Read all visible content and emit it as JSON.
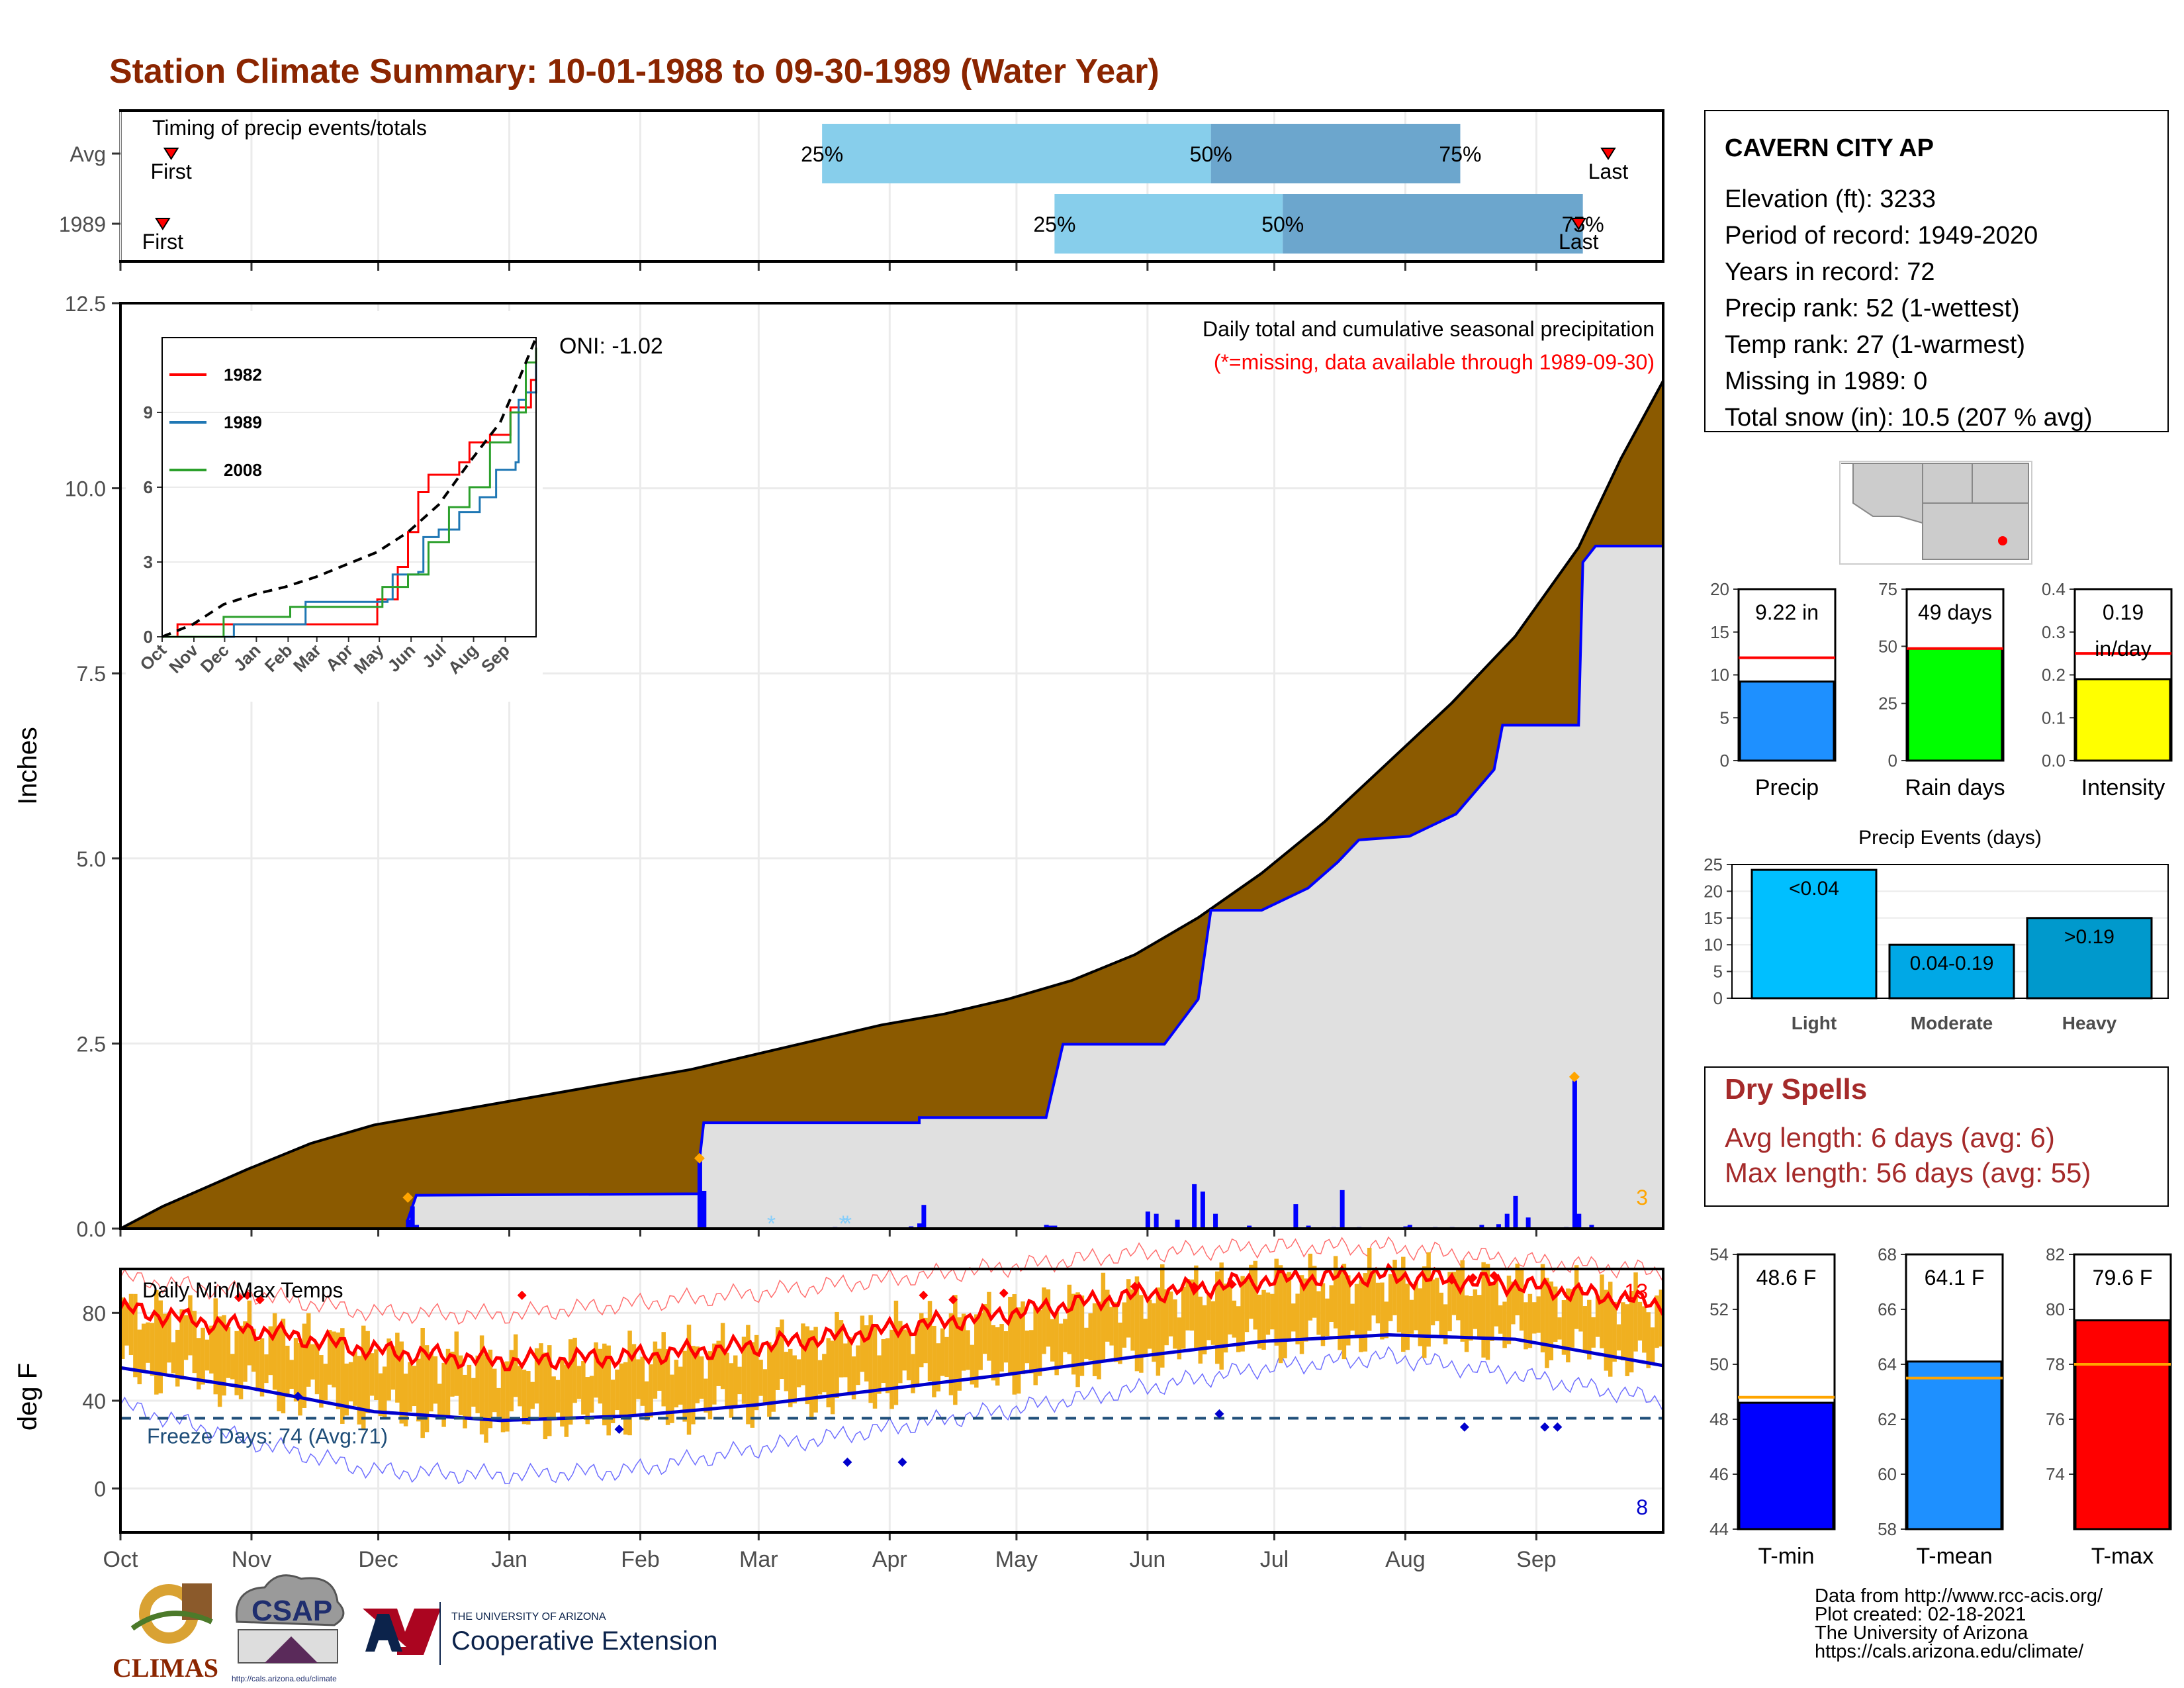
{
  "page": {
    "title": "Station Climate Summary: 10-01-1988 to 09-30-1989 (Water Year)",
    "footer_lines": [
      "Data from http://www.rcc-acis.org/",
      "Plot created: 02-18-2021",
      "The University of Arizona",
      "https://cals.arizona.edu/climate/"
    ],
    "logos": {
      "climas": "CLIMAS",
      "csap": "CSAP",
      "csap_url": "http://cals.arizona.edu/climate",
      "ua_small": "THE UNIVERSITY OF ARIZONA",
      "ua_big": "Cooperative Extension"
    }
  },
  "colors": {
    "title": "#8b2500",
    "cumulative_fill": "#8b5a00",
    "station_fill": "#e0e0e0",
    "precip_blue": "#0000ff",
    "temp_bar": "#f0b020",
    "tmax_line": "#ff0000",
    "tmin_line": "#0000cc",
    "quartile_light": "#87ceeb",
    "quartile_dark": "#6ca6cd",
    "dry_spells": "#a52a2a"
  },
  "info_box": {
    "station": "CAVERN CITY AP",
    "lines": [
      "Elevation (ft): 3233",
      "Period of record: 1949-2020",
      "Years in record: 72",
      "Precip rank: 52 (1-wettest)",
      "Temp rank: 27 (1-warmest)",
      "Missing in 1989: 0",
      "Total snow (in): 10.5 (207 % avg)"
    ]
  },
  "dry_spells": {
    "title": "Dry Spells",
    "avg": "Avg length: 6 days (avg: 6)",
    "max": "Max length: 56 days (avg: 55)"
  },
  "chart_data": [
    {
      "id": "timing",
      "type": "bar",
      "title": "Timing of precip events/totals",
      "rows": [
        {
          "label": "Avg",
          "first_day": 12,
          "q25_day": 166,
          "q50_day": 258,
          "q75_day": 317,
          "last_day": 352,
          "labels": {
            "first": "First",
            "last": "Last",
            "q25": "25%",
            "q50": "50%",
            "q75": "75%"
          }
        },
        {
          "label": "1989",
          "first_day": 10,
          "q25_day": 221,
          "q50_day": 275,
          "q75_day": 346,
          "last_day": 345,
          "labels": {
            "first": "First",
            "last": "Last",
            "q25": "25%",
            "q50": "50%",
            "q75": "75%"
          }
        }
      ]
    },
    {
      "id": "precip",
      "type": "area",
      "title": "Daily total and cumulative seasonal precipitation",
      "subtitle": "(*=missing, data available through 1989-09-30)",
      "ylabel": "Inches",
      "ylim": [
        0,
        12.5
      ],
      "yticks": [
        "0.0",
        "2.5",
        "5.0",
        "7.5",
        "10.0",
        "12.5"
      ],
      "oni": "ONI: -1.02",
      "max_count_label": "3",
      "avg_cumulative": [
        [
          0,
          0
        ],
        [
          10,
          0.3
        ],
        [
          30,
          0.8
        ],
        [
          45,
          1.15
        ],
        [
          60,
          1.4
        ],
        [
          75,
          1.55
        ],
        [
          90,
          1.7
        ],
        [
          105,
          1.85
        ],
        [
          120,
          2.0
        ],
        [
          135,
          2.15
        ],
        [
          150,
          2.35
        ],
        [
          165,
          2.55
        ],
        [
          180,
          2.75
        ],
        [
          195,
          2.9
        ],
        [
          210,
          3.1
        ],
        [
          225,
          3.35
        ],
        [
          240,
          3.7
        ],
        [
          255,
          4.2
        ],
        [
          270,
          4.8
        ],
        [
          285,
          5.5
        ],
        [
          300,
          6.3
        ],
        [
          315,
          7.1
        ],
        [
          330,
          8.0
        ],
        [
          345,
          9.2
        ],
        [
          355,
          10.4
        ],
        [
          365,
          11.45
        ]
      ],
      "station_cumulative": [
        [
          0,
          0
        ],
        [
          68,
          0
        ],
        [
          68,
          0.12
        ],
        [
          70,
          0.45
        ],
        [
          137,
          0.47
        ],
        [
          137,
          0.92
        ],
        [
          138,
          1.43
        ],
        [
          169,
          1.43
        ],
        [
          189,
          1.43
        ],
        [
          189,
          1.5
        ],
        [
          219,
          1.5
        ],
        [
          223,
          2.49
        ],
        [
          247,
          2.49
        ],
        [
          255,
          3.1
        ],
        [
          257,
          3.9
        ],
        [
          258,
          4.3
        ],
        [
          270,
          4.3
        ],
        [
          281,
          4.6
        ],
        [
          288,
          4.95
        ],
        [
          293,
          5.25
        ],
        [
          305,
          5.3
        ],
        [
          316,
          5.6
        ],
        [
          325,
          6.2
        ],
        [
          327,
          6.8
        ],
        [
          345,
          6.8
        ],
        [
          346,
          9.0
        ],
        [
          349,
          9.22
        ],
        [
          365,
          9.22
        ]
      ],
      "daily_bars": [
        [
          68,
          0.12
        ],
        [
          69,
          0.3
        ],
        [
          70,
          0.05
        ],
        [
          137,
          0.92
        ],
        [
          138,
          0.51
        ],
        [
          169,
          0.02
        ],
        [
          187,
          0.03
        ],
        [
          189,
          0.07
        ],
        [
          190,
          0.32
        ],
        [
          219,
          0.05
        ],
        [
          220,
          0.04
        ],
        [
          221,
          0.04
        ],
        [
          243,
          0.23
        ],
        [
          245,
          0.2
        ],
        [
          250,
          0.12
        ],
        [
          254,
          0.6
        ],
        [
          256,
          0.5
        ],
        [
          259,
          0.2
        ],
        [
          267,
          0.04
        ],
        [
          278,
          0.33
        ],
        [
          281,
          0.04
        ],
        [
          287,
          0.02
        ],
        [
          289,
          0.52
        ],
        [
          293,
          0.02
        ],
        [
          304,
          0.03
        ],
        [
          305,
          0.05
        ],
        [
          311,
          0.02
        ],
        [
          315,
          0.02
        ],
        [
          322,
          0.05
        ],
        [
          326,
          0.06
        ],
        [
          328,
          0.2
        ],
        [
          330,
          0.44
        ],
        [
          333,
          0.15
        ],
        [
          342,
          0.02
        ],
        [
          344,
          2.0
        ],
        [
          345,
          0.2
        ],
        [
          348,
          0.05
        ]
      ],
      "missing_markers": [
        154,
        171,
        172
      ],
      "inset": {
        "type": "line",
        "yticks": [
          "0",
          "3",
          "6",
          "9"
        ],
        "ylim": [
          0,
          12
        ],
        "months": [
          "Oct",
          "Nov",
          "Dec",
          "Jan",
          "Feb",
          "Mar",
          "Apr",
          "May",
          "Jun",
          "Jul",
          "Aug",
          "Sep"
        ],
        "series": [
          {
            "name": "1982",
            "color": "#ff0000",
            "points": [
              [
                0,
                0
              ],
              [
                15,
                0.5
              ],
              [
                200,
                0.5
              ],
              [
                210,
                1.5
              ],
              [
                230,
                2.8
              ],
              [
                240,
                4.2
              ],
              [
                250,
                5.8
              ],
              [
                260,
                6.5
              ],
              [
                290,
                7.0
              ],
              [
                300,
                7.8
              ],
              [
                320,
                8.1
              ],
              [
                340,
                9.2
              ],
              [
                360,
                10.3
              ],
              [
                365,
                11.0
              ]
            ]
          },
          {
            "name": "1989",
            "color": "#1f77b4",
            "points": [
              [
                0,
                0
              ],
              [
                30,
                0
              ],
              [
                60,
                0
              ],
              [
                70,
                0.5
              ],
              [
                137,
                0.5
              ],
              [
                140,
                1.4
              ],
              [
                220,
                1.5
              ],
              [
                225,
                2.5
              ],
              [
                250,
                2.6
              ],
              [
                255,
                4.0
              ],
              [
                270,
                4.3
              ],
              [
                290,
                5.0
              ],
              [
                310,
                5.6
              ],
              [
                326,
                6.7
              ],
              [
                345,
                7.0
              ],
              [
                348,
                9.5
              ],
              [
                355,
                9.8
              ],
              [
                365,
                11.2
              ]
            ]
          },
          {
            "name": "2008",
            "color": "#2ca02c",
            "points": [
              [
                0,
                0
              ],
              [
                40,
                0
              ],
              [
                60,
                0.8
              ],
              [
                120,
                0.8
              ],
              [
                125,
                1.2
              ],
              [
                200,
                1.2
              ],
              [
                215,
                2.0
              ],
              [
                240,
                2.5
              ],
              [
                260,
                3.8
              ],
              [
                280,
                5.2
              ],
              [
                300,
                6.0
              ],
              [
                320,
                7.8
              ],
              [
                340,
                9.0
              ],
              [
                355,
                11.0
              ],
              [
                365,
                11.6
              ]
            ]
          },
          {
            "name": "",
            "color": "#000000",
            "dashed": true,
            "points": [
              [
                0,
                0
              ],
              [
                30,
                0.5
              ],
              [
                60,
                1.3
              ],
              [
                90,
                1.7
              ],
              [
                120,
                2.0
              ],
              [
                150,
                2.4
              ],
              [
                180,
                2.9
              ],
              [
                210,
                3.4
              ],
              [
                240,
                4.2
              ],
              [
                270,
                5.3
              ],
              [
                300,
                7.0
              ],
              [
                330,
                8.6
              ],
              [
                350,
                10.5
              ],
              [
                365,
                12.0
              ]
            ]
          }
        ]
      }
    },
    {
      "id": "temps",
      "type": "bar",
      "title": "Daily Min/Max Temps",
      "ylabel": "deg F",
      "yticks": [
        "0",
        "40",
        "80"
      ],
      "ylim": [
        -20,
        100
      ],
      "freeze_line": 32,
      "freeze_label": "Freeze Days: 74 (Avg:71)",
      "record_high_count": "13",
      "record_low_count": "8",
      "avg_tmax": [
        [
          0,
          82
        ],
        [
          30,
          73
        ],
        [
          60,
          63
        ],
        [
          90,
          58
        ],
        [
          120,
          60
        ],
        [
          150,
          65
        ],
        [
          180,
          72
        ],
        [
          210,
          80
        ],
        [
          240,
          88
        ],
        [
          270,
          95
        ],
        [
          300,
          97
        ],
        [
          330,
          93
        ],
        [
          365,
          84
        ]
      ],
      "avg_tmin": [
        [
          0,
          55
        ],
        [
          30,
          46
        ],
        [
          60,
          35
        ],
        [
          90,
          31
        ],
        [
          120,
          33
        ],
        [
          150,
          38
        ],
        [
          180,
          45
        ],
        [
          210,
          52
        ],
        [
          240,
          60
        ],
        [
          270,
          67
        ],
        [
          300,
          70
        ],
        [
          330,
          68
        ],
        [
          365,
          56
        ]
      ],
      "record_max": [
        [
          0,
          96
        ],
        [
          30,
          89
        ],
        [
          60,
          80
        ],
        [
          90,
          79
        ],
        [
          120,
          84
        ],
        [
          150,
          89
        ],
        [
          180,
          95
        ],
        [
          210,
          101
        ],
        [
          240,
          107
        ],
        [
          270,
          110
        ],
        [
          300,
          110
        ],
        [
          330,
          104
        ],
        [
          365,
          99
        ]
      ],
      "record_min": [
        [
          0,
          38
        ],
        [
          30,
          22
        ],
        [
          60,
          8
        ],
        [
          90,
          6
        ],
        [
          120,
          8
        ],
        [
          150,
          18
        ],
        [
          180,
          27
        ],
        [
          210,
          36
        ],
        [
          240,
          45
        ],
        [
          270,
          55
        ],
        [
          300,
          60
        ],
        [
          330,
          52
        ],
        [
          365,
          40
        ]
      ]
    },
    {
      "id": "mini_precip",
      "type": "bar",
      "xlabel": "Precip",
      "value_label": "9.22 in",
      "value": 9.22,
      "avg": 12.0,
      "ylim": [
        0,
        20
      ],
      "yticks": [
        "0",
        "5",
        "10",
        "15",
        "20"
      ]
    },
    {
      "id": "mini_raindays",
      "type": "bar",
      "xlabel": "Rain days",
      "value_label": "49 days",
      "value": 49,
      "avg": 49,
      "ylim": [
        0,
        75
      ],
      "yticks": [
        "0",
        "25",
        "50",
        "75"
      ]
    },
    {
      "id": "mini_intensity",
      "type": "bar",
      "xlabel": "Intensity",
      "value_label": "0.19",
      "value_label2": "in/day",
      "value": 0.19,
      "avg": 0.25,
      "ylim": [
        0,
        0.4
      ],
      "yticks": [
        "0.0",
        "0.1",
        "0.2",
        "0.3",
        "0.4"
      ]
    },
    {
      "id": "events",
      "type": "bar",
      "title": "Precip Events (days)",
      "categories": [
        "Light",
        "Moderate",
        "Heavy"
      ],
      "bar_labels": [
        "<0.04",
        "0.04-0.19",
        ">0.19"
      ],
      "values": [
        24,
        10,
        15
      ],
      "ylim": [
        0,
        25
      ],
      "yticks": [
        "0",
        "5",
        "10",
        "15",
        "20",
        "25"
      ]
    },
    {
      "id": "mini_tmin",
      "type": "bar",
      "xlabel": "T-min",
      "value_label": "48.6 F",
      "value": 48.6,
      "avg": 48.8,
      "ylim": [
        44,
        54
      ],
      "yticks": [
        "44",
        "46",
        "48",
        "50",
        "52",
        "54"
      ]
    },
    {
      "id": "mini_tmean",
      "type": "bar",
      "xlabel": "T-mean",
      "value_label": "64.1 F",
      "value": 64.1,
      "avg": 63.5,
      "ylim": [
        58,
        68
      ],
      "yticks": [
        "58",
        "60",
        "62",
        "64",
        "66",
        "68"
      ]
    },
    {
      "id": "mini_tmax",
      "type": "bar",
      "xlabel": "T-max",
      "value_label": "79.6 F",
      "value": 79.6,
      "avg": 78.0,
      "ylim": [
        72,
        82
      ],
      "yticks": [
        "74",
        "76",
        "78",
        "80",
        "82"
      ]
    }
  ],
  "month_labels": [
    "Oct",
    "Nov",
    "Dec",
    "Jan",
    "Feb",
    "Mar",
    "Apr",
    "May",
    "Jun",
    "Jul",
    "Aug",
    "Sep"
  ],
  "month_days": [
    0,
    31,
    61,
    92,
    123,
    151,
    182,
    212,
    243,
    273,
    304,
    335
  ]
}
